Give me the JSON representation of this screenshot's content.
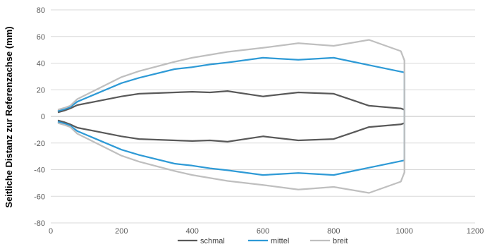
{
  "chart_data": {
    "type": "line",
    "title": "",
    "xlabel": "",
    "ylabel": "Seitliche Distanz zur Referenzachse (mm)",
    "xlim": [
      0,
      1200
    ],
    "ylim": [
      -80,
      80
    ],
    "x_ticks": [
      "0",
      "200",
      "400",
      "600",
      "800",
      "1000",
      "1200"
    ],
    "y_ticks": [
      "80",
      "60",
      "40",
      "20",
      "0",
      "-20",
      "-40",
      "-60",
      "-80"
    ],
    "x_tick_values": [
      0,
      200,
      400,
      600,
      800,
      1000,
      1200
    ],
    "y_tick_values": [
      80,
      60,
      40,
      20,
      0,
      -20,
      -40,
      -60,
      -80
    ],
    "grid": "horizontal",
    "legend_position": "bottom",
    "series": [
      {
        "name": "schmal",
        "color": "#595959",
        "points": [
          [
            20,
            3
          ],
          [
            40,
            4.5
          ],
          [
            55,
            6
          ],
          [
            75,
            8.5
          ],
          [
            200,
            15
          ],
          [
            250,
            17
          ],
          [
            400,
            18.5
          ],
          [
            450,
            18
          ],
          [
            500,
            19
          ],
          [
            600,
            15
          ],
          [
            700,
            18
          ],
          [
            800,
            17
          ],
          [
            900,
            8
          ],
          [
            990,
            6
          ],
          [
            1000,
            5
          ],
          [
            1000,
            -5
          ],
          [
            990,
            -6
          ],
          [
            900,
            -8
          ],
          [
            800,
            -17
          ],
          [
            700,
            -18
          ],
          [
            600,
            -15
          ],
          [
            500,
            -19
          ],
          [
            450,
            -18
          ],
          [
            400,
            -18.5
          ],
          [
            250,
            -17
          ],
          [
            200,
            -15
          ],
          [
            75,
            -8.5
          ],
          [
            55,
            -6
          ],
          [
            40,
            -4.5
          ],
          [
            20,
            -3
          ]
        ]
      },
      {
        "name": "mittel",
        "color": "#2e9ad6",
        "points": [
          [
            20,
            4
          ],
          [
            40,
            5.5
          ],
          [
            55,
            7
          ],
          [
            75,
            11
          ],
          [
            200,
            25
          ],
          [
            250,
            29
          ],
          [
            350,
            35.5
          ],
          [
            400,
            37
          ],
          [
            450,
            39
          ],
          [
            500,
            40.5
          ],
          [
            600,
            44
          ],
          [
            700,
            42.5
          ],
          [
            800,
            44
          ],
          [
            900,
            38.5
          ],
          [
            1000,
            33
          ],
          [
            1000,
            -33
          ],
          [
            900,
            -38.5
          ],
          [
            800,
            -44
          ],
          [
            700,
            -42.5
          ],
          [
            600,
            -44
          ],
          [
            500,
            -40.5
          ],
          [
            450,
            -39
          ],
          [
            400,
            -37
          ],
          [
            350,
            -35.5
          ],
          [
            250,
            -29
          ],
          [
            200,
            -25
          ],
          [
            75,
            -11
          ],
          [
            55,
            -7
          ],
          [
            40,
            -5.5
          ],
          [
            20,
            -4
          ]
        ]
      },
      {
        "name": "breit",
        "color": "#bfbfbf",
        "points": [
          [
            20,
            5
          ],
          [
            40,
            6.5
          ],
          [
            55,
            8
          ],
          [
            75,
            13
          ],
          [
            200,
            29.5
          ],
          [
            250,
            34
          ],
          [
            350,
            41
          ],
          [
            400,
            44
          ],
          [
            500,
            48.5
          ],
          [
            600,
            51.5
          ],
          [
            700,
            55
          ],
          [
            800,
            53
          ],
          [
            900,
            57.5
          ],
          [
            990,
            49
          ],
          [
            1000,
            42
          ],
          [
            1000,
            -42
          ],
          [
            990,
            -49
          ],
          [
            900,
            -57.5
          ],
          [
            800,
            -53
          ],
          [
            700,
            -55
          ],
          [
            600,
            -51.5
          ],
          [
            500,
            -48.5
          ],
          [
            400,
            -44
          ],
          [
            350,
            -41
          ],
          [
            250,
            -34
          ],
          [
            200,
            -29.5
          ],
          [
            75,
            -13
          ],
          [
            55,
            -8
          ],
          [
            40,
            -6.5
          ],
          [
            20,
            -5
          ]
        ]
      }
    ]
  }
}
